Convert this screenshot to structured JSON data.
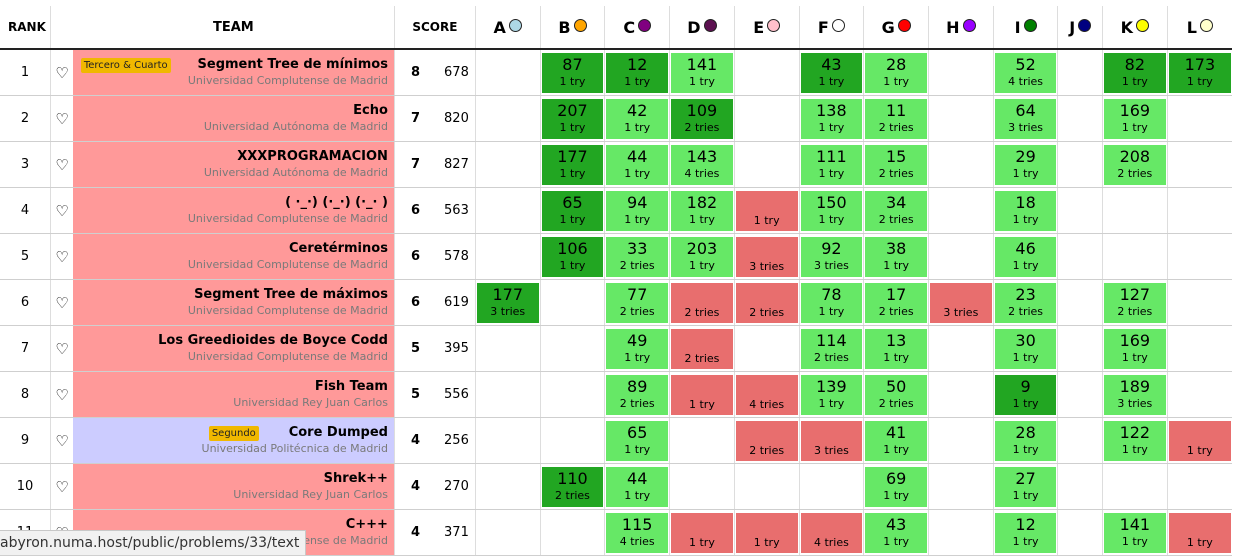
{
  "headers": {
    "rank": "RANK",
    "team": "TEAM",
    "score": "SCORE"
  },
  "colors": {
    "solved": "#66e866",
    "first_solve": "#22a622",
    "failed": "#e86e6e",
    "row_pink": "#ff9999",
    "row_lavender": "#ccccff",
    "badge": "#f0b800"
  },
  "problems": [
    {
      "letter": "A",
      "color": "#add8e6"
    },
    {
      "letter": "B",
      "color": "#ffa500"
    },
    {
      "letter": "C",
      "color": "#800080"
    },
    {
      "letter": "D",
      "color": "#5c1050"
    },
    {
      "letter": "E",
      "color": "#ffc0cb"
    },
    {
      "letter": "F",
      "color": "#ffffff"
    },
    {
      "letter": "G",
      "color": "#ff0000"
    },
    {
      "letter": "H",
      "color": "#9900ff"
    },
    {
      "letter": "I",
      "color": "#008000"
    },
    {
      "letter": "J",
      "color": "#000080"
    },
    {
      "letter": "K",
      "color": "#ffff00"
    },
    {
      "letter": "L",
      "color": "#ffffcc"
    }
  ],
  "teams": [
    {
      "rank": "1",
      "name": "Segment Tree de mínimos",
      "uni": "Universidad Complutense de Madrid",
      "badge": "Tercero & Cuarto",
      "bg": "#ff9999",
      "solved": "8",
      "penalty": "678",
      "cells": [
        null,
        {
          "t": "87",
          "tr": "1 try",
          "s": "first"
        },
        {
          "t": "12",
          "tr": "1 try",
          "s": "first"
        },
        {
          "t": "141",
          "tr": "1 try",
          "s": "ok"
        },
        null,
        {
          "t": "43",
          "tr": "1 try",
          "s": "first"
        },
        {
          "t": "28",
          "tr": "1 try",
          "s": "ok"
        },
        null,
        {
          "t": "52",
          "tr": "4 tries",
          "s": "ok"
        },
        null,
        {
          "t": "82",
          "tr": "1 try",
          "s": "first"
        },
        {
          "t": "173",
          "tr": "1 try",
          "s": "first"
        }
      ]
    },
    {
      "rank": "2",
      "name": "Echo",
      "uni": "Universidad Autónoma de Madrid",
      "badge": null,
      "bg": "#ff9999",
      "solved": "7",
      "penalty": "820",
      "cells": [
        null,
        {
          "t": "207",
          "tr": "1 try",
          "s": "first"
        },
        {
          "t": "42",
          "tr": "1 try",
          "s": "ok"
        },
        {
          "t": "109",
          "tr": "2 tries",
          "s": "first"
        },
        null,
        {
          "t": "138",
          "tr": "1 try",
          "s": "ok"
        },
        {
          "t": "11",
          "tr": "2 tries",
          "s": "ok"
        },
        null,
        {
          "t": "64",
          "tr": "3 tries",
          "s": "ok"
        },
        null,
        {
          "t": "169",
          "tr": "1 try",
          "s": "ok"
        },
        null
      ]
    },
    {
      "rank": "3",
      "name": "XXXPROGRAMACION",
      "uni": "Universidad Autónoma de Madrid",
      "badge": null,
      "bg": "#ff9999",
      "solved": "7",
      "penalty": "827",
      "cells": [
        null,
        {
          "t": "177",
          "tr": "1 try",
          "s": "first"
        },
        {
          "t": "44",
          "tr": "1 try",
          "s": "ok"
        },
        {
          "t": "143",
          "tr": "4 tries",
          "s": "ok"
        },
        null,
        {
          "t": "111",
          "tr": "1 try",
          "s": "ok"
        },
        {
          "t": "15",
          "tr": "2 tries",
          "s": "ok"
        },
        null,
        {
          "t": "29",
          "tr": "1 try",
          "s": "ok"
        },
        null,
        {
          "t": "208",
          "tr": "2 tries",
          "s": "ok"
        },
        null
      ]
    },
    {
      "rank": "4",
      "name": "( ·_·) (·_·) (·_· )",
      "uni": "Universidad Complutense de Madrid",
      "badge": null,
      "bg": "#ff9999",
      "solved": "6",
      "penalty": "563",
      "cells": [
        null,
        {
          "t": "65",
          "tr": "1 try",
          "s": "first"
        },
        {
          "t": "94",
          "tr": "1 try",
          "s": "ok"
        },
        {
          "t": "182",
          "tr": "1 try",
          "s": "ok"
        },
        {
          "t": "",
          "tr": "1 try",
          "s": "fail"
        },
        {
          "t": "150",
          "tr": "1 try",
          "s": "ok"
        },
        {
          "t": "34",
          "tr": "2 tries",
          "s": "ok"
        },
        null,
        {
          "t": "18",
          "tr": "1 try",
          "s": "ok"
        },
        null,
        null,
        null
      ]
    },
    {
      "rank": "5",
      "name": "Ceretérminos",
      "uni": "Universidad Complutense de Madrid",
      "badge": null,
      "bg": "#ff9999",
      "solved": "6",
      "penalty": "578",
      "cells": [
        null,
        {
          "t": "106",
          "tr": "1 try",
          "s": "first"
        },
        {
          "t": "33",
          "tr": "2 tries",
          "s": "ok"
        },
        {
          "t": "203",
          "tr": "1 try",
          "s": "ok"
        },
        {
          "t": "",
          "tr": "3 tries",
          "s": "fail"
        },
        {
          "t": "92",
          "tr": "3 tries",
          "s": "ok"
        },
        {
          "t": "38",
          "tr": "1 try",
          "s": "ok"
        },
        null,
        {
          "t": "46",
          "tr": "1 try",
          "s": "ok"
        },
        null,
        null,
        null
      ]
    },
    {
      "rank": "6",
      "name": "Segment Tree de máximos",
      "uni": "Universidad Complutense de Madrid",
      "badge": null,
      "bg": "#ff9999",
      "solved": "6",
      "penalty": "619",
      "cells": [
        {
          "t": "177",
          "tr": "3 tries",
          "s": "first"
        },
        null,
        {
          "t": "77",
          "tr": "2 tries",
          "s": "ok"
        },
        {
          "t": "",
          "tr": "2 tries",
          "s": "fail"
        },
        {
          "t": "",
          "tr": "2 tries",
          "s": "fail"
        },
        {
          "t": "78",
          "tr": "1 try",
          "s": "ok"
        },
        {
          "t": "17",
          "tr": "2 tries",
          "s": "ok"
        },
        {
          "t": "",
          "tr": "3 tries",
          "s": "fail"
        },
        {
          "t": "23",
          "tr": "2 tries",
          "s": "ok"
        },
        null,
        {
          "t": "127",
          "tr": "2 tries",
          "s": "ok"
        },
        null
      ]
    },
    {
      "rank": "7",
      "name": "Los Greedioides de Boyce Codd",
      "uni": "Universidad Complutense de Madrid",
      "badge": null,
      "bg": "#ff9999",
      "solved": "5",
      "penalty": "395",
      "cells": [
        null,
        null,
        {
          "t": "49",
          "tr": "1 try",
          "s": "ok"
        },
        {
          "t": "",
          "tr": "2 tries",
          "s": "fail"
        },
        null,
        {
          "t": "114",
          "tr": "2 tries",
          "s": "ok"
        },
        {
          "t": "13",
          "tr": "1 try",
          "s": "ok"
        },
        null,
        {
          "t": "30",
          "tr": "1 try",
          "s": "ok"
        },
        null,
        {
          "t": "169",
          "tr": "1 try",
          "s": "ok"
        },
        null
      ]
    },
    {
      "rank": "8",
      "name": "Fish Team",
      "uni": "Universidad Rey Juan Carlos",
      "badge": null,
      "bg": "#ff9999",
      "solved": "5",
      "penalty": "556",
      "cells": [
        null,
        null,
        {
          "t": "89",
          "tr": "2 tries",
          "s": "ok"
        },
        {
          "t": "",
          "tr": "1 try",
          "s": "fail"
        },
        {
          "t": "",
          "tr": "4 tries",
          "s": "fail"
        },
        {
          "t": "139",
          "tr": "1 try",
          "s": "ok"
        },
        {
          "t": "50",
          "tr": "2 tries",
          "s": "ok"
        },
        null,
        {
          "t": "9",
          "tr": "1 try",
          "s": "first"
        },
        null,
        {
          "t": "189",
          "tr": "3 tries",
          "s": "ok"
        },
        null
      ]
    },
    {
      "rank": "9",
      "name": "Core Dumped",
      "uni": "Universidad Politécnica de Madrid",
      "badge": "Segundo",
      "bg": "#ccccff",
      "solved": "4",
      "penalty": "256",
      "cells": [
        null,
        null,
        {
          "t": "65",
          "tr": "1 try",
          "s": "ok"
        },
        null,
        {
          "t": "",
          "tr": "2 tries",
          "s": "fail"
        },
        {
          "t": "",
          "tr": "3 tries",
          "s": "fail"
        },
        {
          "t": "41",
          "tr": "1 try",
          "s": "ok"
        },
        null,
        {
          "t": "28",
          "tr": "1 try",
          "s": "ok"
        },
        null,
        {
          "t": "122",
          "tr": "1 try",
          "s": "ok"
        },
        {
          "t": "",
          "tr": "1 try",
          "s": "fail"
        }
      ]
    },
    {
      "rank": "10",
      "name": "Shrek++",
      "uni": "Universidad Rey Juan Carlos",
      "badge": null,
      "bg": "#ff9999",
      "solved": "4",
      "penalty": "270",
      "cells": [
        null,
        {
          "t": "110",
          "tr": "2 tries",
          "s": "first"
        },
        {
          "t": "44",
          "tr": "1 try",
          "s": "ok"
        },
        null,
        null,
        null,
        {
          "t": "69",
          "tr": "1 try",
          "s": "ok"
        },
        null,
        {
          "t": "27",
          "tr": "1 try",
          "s": "ok"
        },
        null,
        null,
        null
      ]
    },
    {
      "rank": "11",
      "name": "C+++",
      "uni": "Universidad Complutense de Madrid",
      "badge": null,
      "bg": "#ff9999",
      "solved": "4",
      "penalty": "371",
      "cells": [
        null,
        null,
        {
          "t": "115",
          "tr": "4 tries",
          "s": "ok"
        },
        {
          "t": "",
          "tr": "1 try",
          "s": "fail"
        },
        {
          "t": "",
          "tr": "1 try",
          "s": "fail"
        },
        {
          "t": "",
          "tr": "4 tries",
          "s": "fail"
        },
        {
          "t": "43",
          "tr": "1 try",
          "s": "ok"
        },
        null,
        {
          "t": "12",
          "tr": "1 try",
          "s": "ok"
        },
        null,
        {
          "t": "141",
          "tr": "1 try",
          "s": "ok"
        },
        {
          "t": "",
          "tr": "1 try",
          "s": "fail"
        }
      ]
    }
  ],
  "heart_glyph": "♡",
  "statusbar": {
    "url": "abyron.numa.host/public/problems/33/text"
  }
}
